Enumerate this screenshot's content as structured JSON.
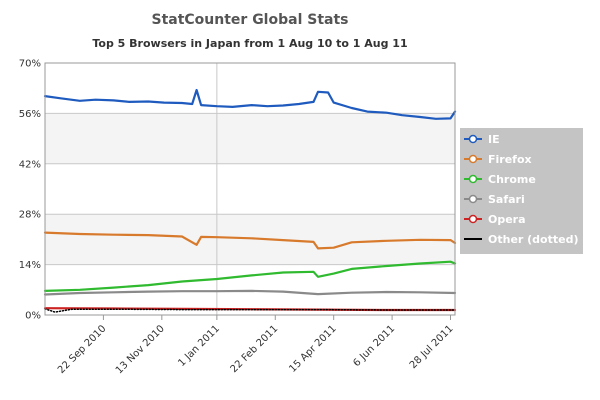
{
  "chart_data": {
    "type": "line",
    "title": "StatCounter Global Stats",
    "subtitle": "Top 5 Browsers in Japan from 1 Aug 10 to 1 Aug 11",
    "xlabel": "",
    "ylabel": "",
    "x_range": [
      "2010-08-01",
      "2011-08-01"
    ],
    "ylim": [
      0,
      70
    ],
    "y_ticks": [
      0,
      14,
      28,
      42,
      56,
      70
    ],
    "y_tick_labels": [
      "0%",
      "14%",
      "28%",
      "42%",
      "56%",
      "70%"
    ],
    "x_ticks": [
      {
        "date": "2010-09-22",
        "label": "22 Sep 2010"
      },
      {
        "date": "2010-11-13",
        "label": "13 Nov 2010"
      },
      {
        "date": "2011-01-01",
        "label": "1 Jan 2011"
      },
      {
        "date": "2011-02-22",
        "label": "22 Feb 2011"
      },
      {
        "date": "2011-04-15",
        "label": "15 Apr 2011"
      },
      {
        "date": "2011-06-06",
        "label": "6 Jun 2011"
      },
      {
        "date": "2011-07-28",
        "label": "28 Jul 2011"
      }
    ],
    "alternating_bands": true,
    "legend_position": "right",
    "series": [
      {
        "name": "IE",
        "color": "#1f5bbf",
        "dotted": false,
        "points": [
          [
            "2010-08-01",
            60.8
          ],
          [
            "2010-08-15",
            60.2
          ],
          [
            "2010-09-01",
            59.5
          ],
          [
            "2010-09-15",
            59.8
          ],
          [
            "2010-10-01",
            59.6
          ],
          [
            "2010-10-15",
            59.2
          ],
          [
            "2010-11-01",
            59.3
          ],
          [
            "2010-11-15",
            59.0
          ],
          [
            "2010-12-01",
            58.9
          ],
          [
            "2010-12-10",
            58.6
          ],
          [
            "2010-12-14",
            62.5
          ],
          [
            "2010-12-18",
            58.3
          ],
          [
            "2011-01-01",
            58.0
          ],
          [
            "2011-01-15",
            57.8
          ],
          [
            "2011-02-01",
            58.3
          ],
          [
            "2011-02-15",
            58.0
          ],
          [
            "2011-03-01",
            58.2
          ],
          [
            "2011-03-15",
            58.6
          ],
          [
            "2011-03-28",
            59.2
          ],
          [
            "2011-04-01",
            62.0
          ],
          [
            "2011-04-10",
            61.8
          ],
          [
            "2011-04-15",
            59.0
          ],
          [
            "2011-05-01",
            57.5
          ],
          [
            "2011-05-15",
            56.5
          ],
          [
            "2011-06-01",
            56.2
          ],
          [
            "2011-06-15",
            55.5
          ],
          [
            "2011-07-01",
            55.0
          ],
          [
            "2011-07-15",
            54.5
          ],
          [
            "2011-07-28",
            54.6
          ],
          [
            "2011-08-01",
            56.5
          ]
        ]
      },
      {
        "name": "Firefox",
        "color": "#d87a2c",
        "dotted": false,
        "points": [
          [
            "2010-08-01",
            22.9
          ],
          [
            "2010-09-01",
            22.5
          ],
          [
            "2010-10-01",
            22.3
          ],
          [
            "2010-11-01",
            22.2
          ],
          [
            "2010-12-01",
            21.8
          ],
          [
            "2010-12-14",
            19.5
          ],
          [
            "2010-12-18",
            21.7
          ],
          [
            "2011-01-01",
            21.6
          ],
          [
            "2011-02-01",
            21.3
          ],
          [
            "2011-03-01",
            20.8
          ],
          [
            "2011-03-28",
            20.3
          ],
          [
            "2011-04-01",
            18.5
          ],
          [
            "2011-04-15",
            18.7
          ],
          [
            "2011-05-01",
            20.2
          ],
          [
            "2011-06-01",
            20.6
          ],
          [
            "2011-07-01",
            20.9
          ],
          [
            "2011-07-28",
            20.8
          ],
          [
            "2011-08-01",
            20.0
          ]
        ]
      },
      {
        "name": "Chrome",
        "color": "#2fba2f",
        "dotted": false,
        "points": [
          [
            "2010-08-01",
            6.7
          ],
          [
            "2010-09-01",
            7.0
          ],
          [
            "2010-10-01",
            7.6
          ],
          [
            "2010-11-01",
            8.3
          ],
          [
            "2010-12-01",
            9.3
          ],
          [
            "2011-01-01",
            10.0
          ],
          [
            "2011-02-01",
            11.0
          ],
          [
            "2011-03-01",
            11.8
          ],
          [
            "2011-03-28",
            12.0
          ],
          [
            "2011-04-01",
            10.6
          ],
          [
            "2011-04-15",
            11.5
          ],
          [
            "2011-05-01",
            12.8
          ],
          [
            "2011-06-01",
            13.6
          ],
          [
            "2011-07-01",
            14.3
          ],
          [
            "2011-07-28",
            14.8
          ],
          [
            "2011-08-01",
            14.3
          ]
        ]
      },
      {
        "name": "Safari",
        "color": "#8a8a8a",
        "dotted": false,
        "points": [
          [
            "2010-08-01",
            5.7
          ],
          [
            "2010-09-01",
            6.1
          ],
          [
            "2010-10-01",
            6.3
          ],
          [
            "2010-11-01",
            6.5
          ],
          [
            "2010-12-01",
            6.6
          ],
          [
            "2011-01-01",
            6.6
          ],
          [
            "2011-02-01",
            6.7
          ],
          [
            "2011-03-01",
            6.5
          ],
          [
            "2011-04-01",
            5.8
          ],
          [
            "2011-05-01",
            6.2
          ],
          [
            "2011-06-01",
            6.4
          ],
          [
            "2011-07-01",
            6.3
          ],
          [
            "2011-08-01",
            6.1
          ]
        ]
      },
      {
        "name": "Opera",
        "color": "#cc2222",
        "dotted": false,
        "points": [
          [
            "2010-08-01",
            1.9
          ],
          [
            "2010-10-01",
            1.8
          ],
          [
            "2010-12-01",
            1.7
          ],
          [
            "2011-02-01",
            1.6
          ],
          [
            "2011-04-01",
            1.5
          ],
          [
            "2011-06-01",
            1.4
          ],
          [
            "2011-08-01",
            1.4
          ]
        ]
      },
      {
        "name": "Other (dotted)",
        "color": "#000000",
        "dotted": true,
        "points": [
          [
            "2010-08-01",
            1.7
          ],
          [
            "2010-08-10",
            0.8
          ],
          [
            "2010-08-25",
            1.6
          ],
          [
            "2010-10-01",
            1.6
          ],
          [
            "2010-12-01",
            1.5
          ],
          [
            "2011-02-01",
            1.5
          ],
          [
            "2011-04-01",
            1.5
          ],
          [
            "2011-06-01",
            1.4
          ],
          [
            "2011-08-01",
            1.4
          ]
        ]
      }
    ]
  }
}
